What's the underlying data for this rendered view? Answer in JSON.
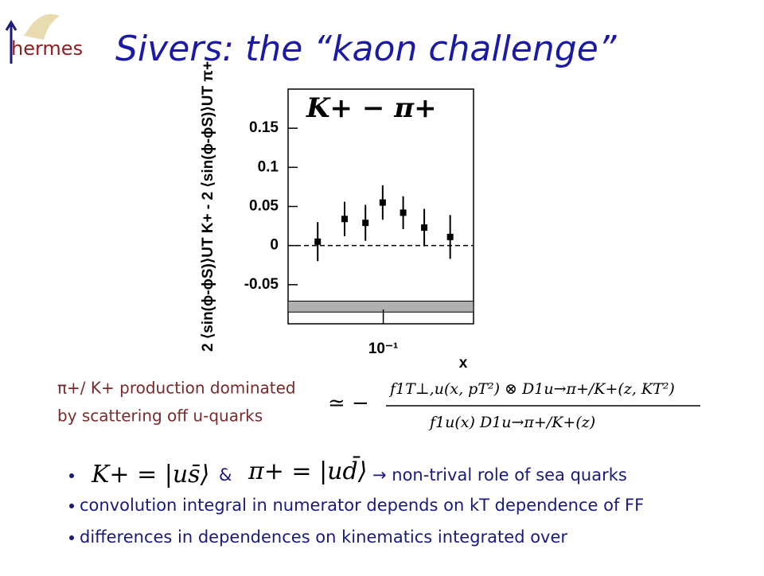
{
  "logo": "hermes",
  "title": "Sivers:  the “kaon challenge”",
  "chart_data": {
    "type": "errorbar",
    "ylabel": "2 ⟨sin(ϕ-ϕS)⟩UT K+ - 2 ⟨sin(ϕ-ϕS)⟩UT π+",
    "xlabel": "x",
    "annotation": "K+ − π+",
    "x": [
      0.033,
      0.052,
      0.074,
      0.099,
      0.14,
      0.2,
      0.31
    ],
    "values": [
      0.005,
      0.034,
      0.029,
      0.055,
      0.042,
      0.023,
      0.011
    ],
    "errors": [
      0.025,
      0.022,
      0.023,
      0.022,
      0.021,
      0.024,
      0.028
    ],
    "color": "#000000",
    "systematic_band": [
      -0.085,
      -0.071
    ],
    "band_color": "#b0b0b0",
    "xlim": [
      0.02,
      0.46
    ],
    "xscale": "log",
    "xticks": [
      {
        "value": 0.1,
        "label": "10⁻¹"
      }
    ],
    "ylim": [
      -0.1,
      0.2
    ],
    "yticks": [
      -0.05,
      0,
      0.05,
      0.1,
      0.15
    ],
    "zero_line": "dashed"
  },
  "note": [
    "π+/ K+ production dominated",
    "by scattering off u-quarks"
  ],
  "formula": {
    "prefix": "≃ −",
    "numerator": "f1T⊥,u(x, pT²) ⊗ D1u→π+/K+(z, KT²)",
    "denominator": "f1u(x)  D1u→π+/K+(z)"
  },
  "bullets": [
    {
      "parts": [
        "K+ = |us̄⟩",
        "&",
        "π+ = |ud̄⟩",
        "→  non-trival role of sea quarks"
      ]
    },
    {
      "text": "convolution integral in numerator depends on kT dependence of FF"
    },
    {
      "text": "differences in dependences on kinematics integrated over"
    }
  ]
}
